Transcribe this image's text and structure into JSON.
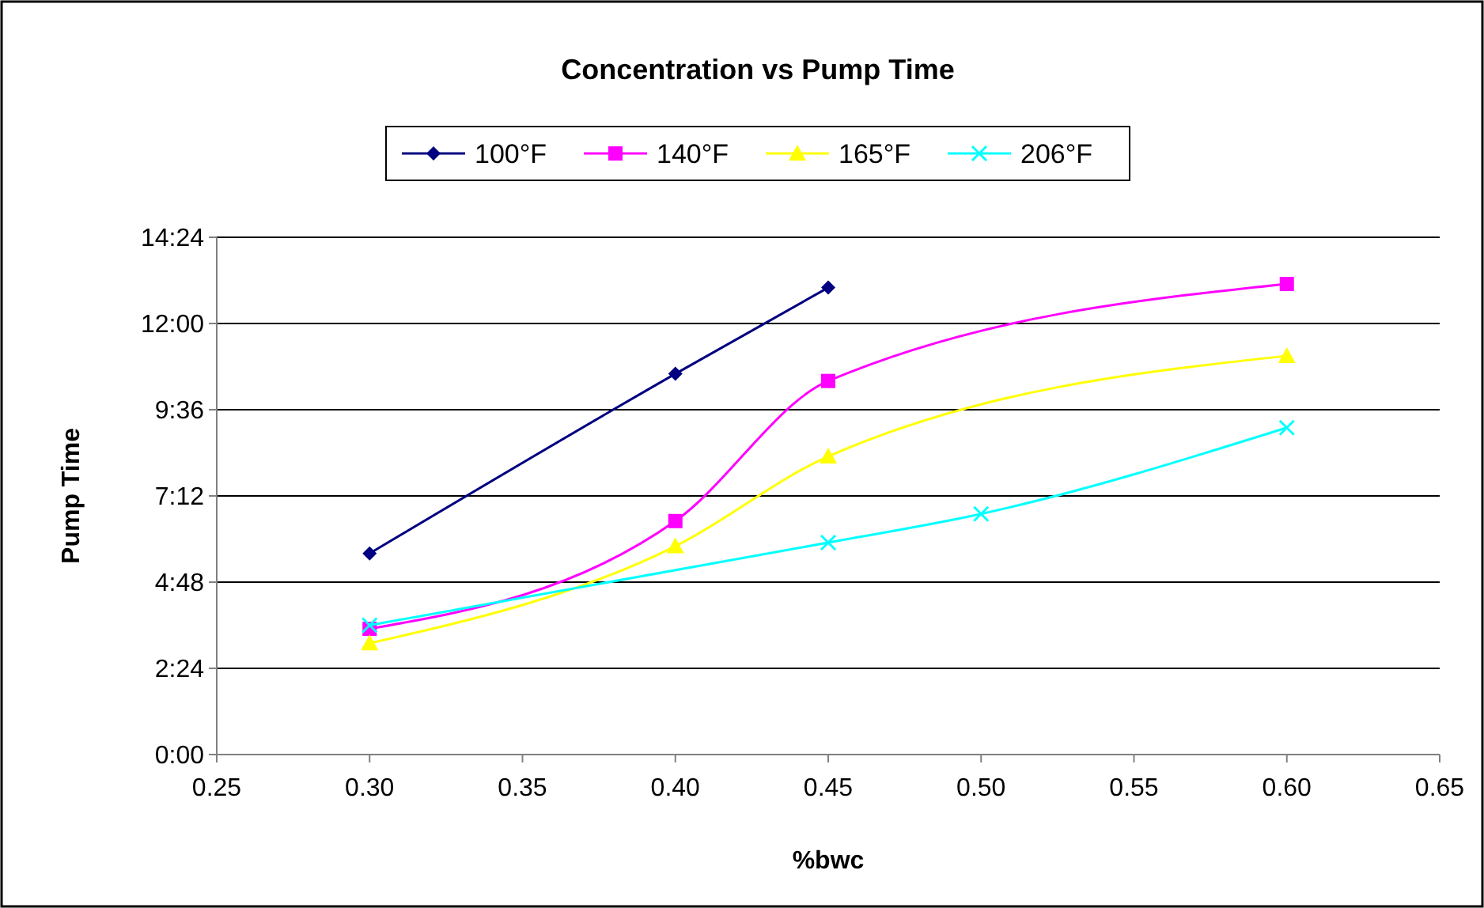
{
  "chart_data": {
    "type": "line",
    "title": "Concentration vs Pump Time",
    "xlabel": "%bwc",
    "ylabel": "Pump Time",
    "series": [
      {
        "name": "100°F",
        "color": "#000080",
        "marker": "diamond",
        "x": [
          0.3,
          0.4,
          0.45
        ],
        "values": [
          5.6,
          10.6,
          13.0
        ]
      },
      {
        "name": "140°F",
        "color": "#ff00ff",
        "marker": "square",
        "x": [
          0.3,
          0.4,
          0.45,
          0.6
        ],
        "values": [
          3.5,
          6.5,
          10.4,
          13.1
        ]
      },
      {
        "name": "165°F",
        "color": "#ffff00",
        "marker": "triangle",
        "x": [
          0.3,
          0.4,
          0.45,
          0.6
        ],
        "values": [
          3.1,
          5.8,
          8.3,
          11.1
        ]
      },
      {
        "name": "206°F",
        "color": "#00ffff",
        "marker": "cross",
        "x": [
          0.3,
          0.45,
          0.5,
          0.6
        ],
        "values": [
          3.6,
          5.9,
          6.7,
          9.1
        ]
      }
    ],
    "xlim": [
      0.25,
      0.65
    ],
    "xticks": [
      {
        "value": 0.25,
        "label": "0.25"
      },
      {
        "value": 0.3,
        "label": "0.30"
      },
      {
        "value": 0.35,
        "label": "0.35"
      },
      {
        "value": 0.4,
        "label": "0.40"
      },
      {
        "value": 0.45,
        "label": "0.45"
      },
      {
        "value": 0.5,
        "label": "0.50"
      },
      {
        "value": 0.55,
        "label": "0.55"
      },
      {
        "value": 0.6,
        "label": "0.60"
      },
      {
        "value": 0.65,
        "label": "0.65"
      }
    ],
    "ylim": [
      0,
      14.4
    ],
    "yticks": [
      {
        "value": 0,
        "label": "0:00"
      },
      {
        "value": 2.4,
        "label": "2:24"
      },
      {
        "value": 4.8,
        "label": "4:48"
      },
      {
        "value": 7.2,
        "label": "7:12"
      },
      {
        "value": 9.6,
        "label": "9:36"
      },
      {
        "value": 12,
        "label": "12:00"
      },
      {
        "value": 14.4,
        "label": "14:24"
      }
    ],
    "grid": "y",
    "legend": "top",
    "line_style": "solid"
  }
}
